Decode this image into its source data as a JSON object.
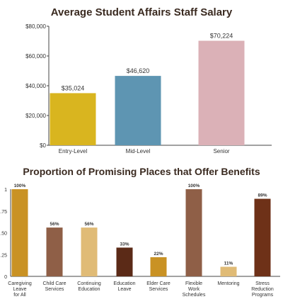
{
  "chart_data": [
    {
      "type": "bar",
      "title": "Average Student Affairs Staff Salary",
      "categories": [
        "Entry-Level",
        "Mid-Level",
        "Senior"
      ],
      "values": [
        35024,
        46620,
        70224
      ],
      "value_labels": [
        "$35,024",
        "$46,620",
        "$70,224"
      ],
      "yticks": [
        "$0",
        "$20,000",
        "$40,000",
        "$60,000",
        "$80,000"
      ],
      "ylim": [
        0,
        80000
      ],
      "colors": [
        "#d9b51f",
        "#5e95b2",
        "#dbb1b7"
      ],
      "grid": false
    },
    {
      "type": "bar",
      "title": "Proportion of Promising Places that Offer Benefits",
      "categories": [
        [
          "Caregiving",
          "Leave",
          "for All"
        ],
        [
          "Child Care",
          "Services"
        ],
        [
          "Continuing",
          "Education"
        ],
        [
          "Education",
          "Leave"
        ],
        [
          "Elder Care",
          "Services"
        ],
        [
          "Flexible",
          "Work",
          "Schedules"
        ],
        [
          "Mentoring"
        ],
        [
          "Stress",
          "Reduction",
          "Programs"
        ]
      ],
      "values": [
        1.0,
        0.56,
        0.56,
        0.33,
        0.22,
        1.0,
        0.11,
        0.89
      ],
      "value_labels": [
        "100%",
        "56%",
        "56%",
        "33%",
        "22%",
        "100%",
        "11%",
        "89%"
      ],
      "yticks": [
        "0",
        ".25",
        ".50",
        ".75",
        "1"
      ],
      "ylim": [
        0,
        1
      ],
      "colors": [
        "#c99224",
        "#8f5f47",
        "#e0bb76",
        "#5b2a17",
        "#c99224",
        "#8f5f47",
        "#e0bb76",
        "#6e3118"
      ],
      "grid": false
    }
  ]
}
